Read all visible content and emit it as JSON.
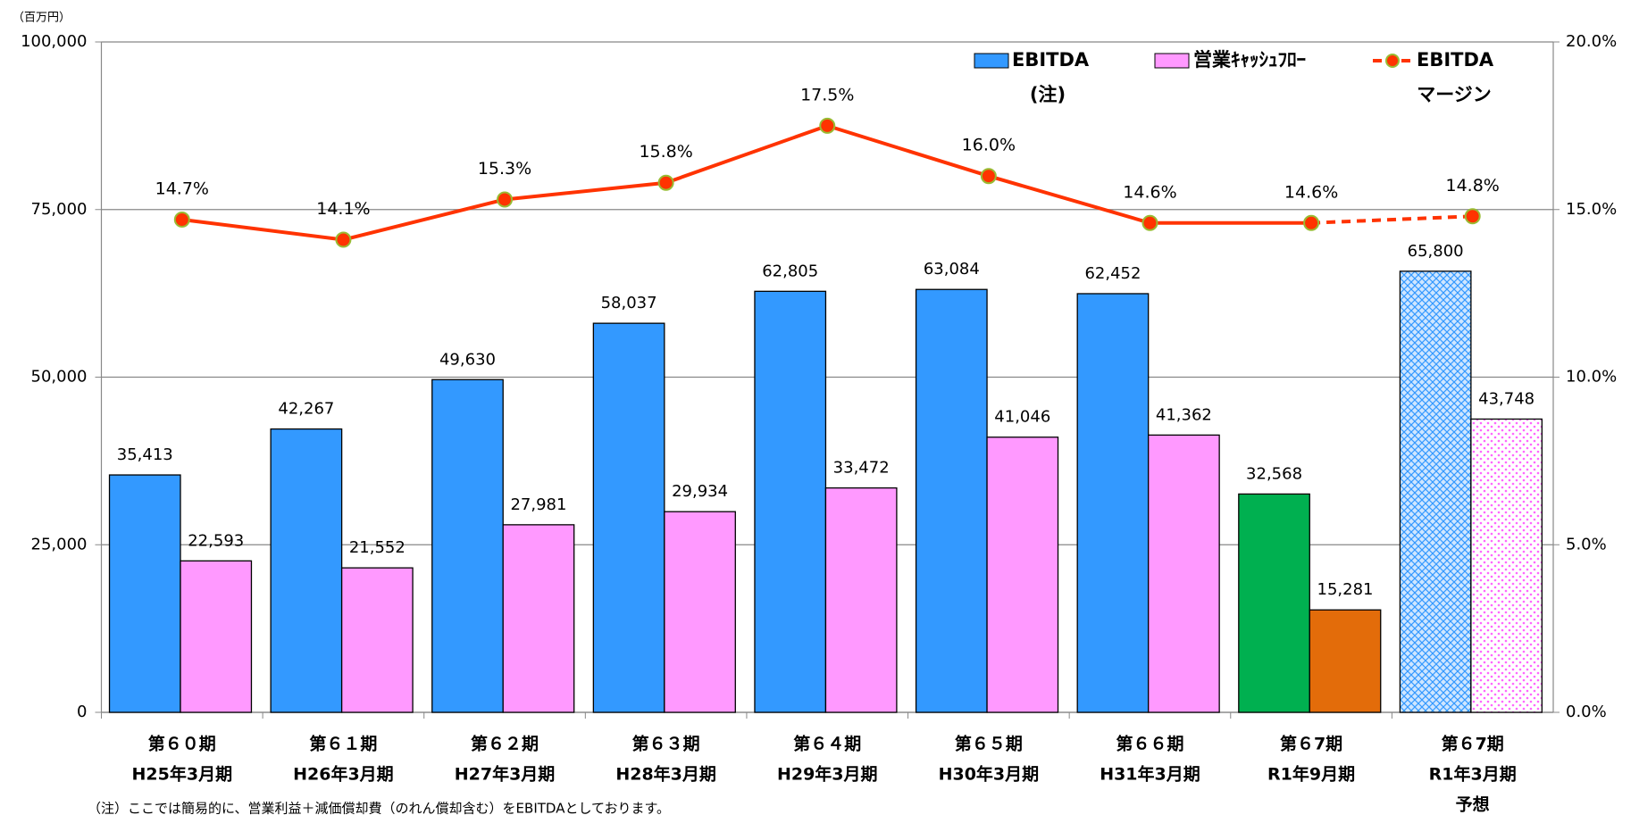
{
  "chart_data": {
    "type": "bar_line",
    "unit_label": "（百万円）",
    "note": "（注）ここでは簡易的に、営業利益＋減価償却費（のれん償却含む）をEBITDAとしております。",
    "categories": [
      [
        "第６０期",
        "H25年3月期"
      ],
      [
        "第６１期",
        "H26年3月期"
      ],
      [
        "第６２期",
        "H27年3月期"
      ],
      [
        "第６３期",
        "H28年3月期"
      ],
      [
        "第６４期",
        "H29年3月期"
      ],
      [
        "第６５期",
        "H30年3月期"
      ],
      [
        "第６６期",
        "H31年3月期"
      ],
      [
        "第６7期",
        "R1年9月期"
      ],
      [
        "第６7期",
        "R1年3月期",
        "予想"
      ]
    ],
    "ylim": [
      0,
      100000
    ],
    "yticks": [
      0,
      {
        "value": 25000,
        "label": "25,000"
      },
      {
        "value": 50000,
        "label": "50,000"
      },
      {
        "value": 75000,
        "label": "75,000"
      },
      {
        "value": 100000,
        "label": "100,000"
      }
    ],
    "y2lim": [
      0,
      20
    ],
    "y2ticks": [
      {
        "value": 0,
        "label": "0.0%"
      },
      {
        "value": 5,
        "label": "5.0%"
      },
      {
        "value": 10,
        "label": "10.0%"
      },
      {
        "value": 15,
        "label": "15.0%"
      },
      {
        "value": 20,
        "label": "20.0%"
      }
    ],
    "grid": true,
    "series": [
      {
        "name": [
          "EBITDA",
          "(注)"
        ],
        "type": "bar",
        "color": "#3399ff",
        "colors": [
          "#3399ff",
          "#3399ff",
          "#3399ff",
          "#3399ff",
          "#3399ff",
          "#3399ff",
          "#3399ff",
          "#00b050",
          "#99ccff"
        ],
        "hatched": [
          false,
          false,
          false,
          false,
          false,
          false,
          false,
          false,
          true
        ],
        "values": [
          35413,
          42267,
          49630,
          58037,
          62805,
          63084,
          62452,
          32568,
          65800
        ],
        "value_labels": [
          "35,413",
          "42,267",
          "49,630",
          "58,037",
          "62,805",
          "63,084",
          "62,452",
          "32,568",
          "65,800"
        ]
      },
      {
        "name": [
          "営業ｷｬｯｼｭﾌﾛｰ"
        ],
        "type": "bar",
        "color": "#ff99ff",
        "colors": [
          "#ff99ff",
          "#ff99ff",
          "#ff99ff",
          "#ff99ff",
          "#ff99ff",
          "#ff99ff",
          "#ff99ff",
          "#e36c0a",
          "#ffccff"
        ],
        "hatched": [
          false,
          false,
          false,
          false,
          false,
          false,
          false,
          false,
          true
        ],
        "values": [
          22593,
          21552,
          27981,
          29934,
          33472,
          41046,
          41362,
          15281,
          43748
        ],
        "value_labels": [
          "22,593",
          "21,552",
          "27,981",
          "29,934",
          "33,472",
          "41,046",
          "41,362",
          "15,281",
          "43,748"
        ]
      },
      {
        "name": [
          "EBITDA",
          "マージン"
        ],
        "type": "line",
        "axis": "y2",
        "color": "#ff3300",
        "dashed": [
          false,
          false,
          false,
          false,
          false,
          false,
          false,
          false,
          true
        ],
        "values": [
          14.7,
          14.1,
          15.3,
          15.8,
          17.5,
          16.0,
          14.6,
          14.6,
          14.8
        ],
        "value_labels": [
          "14.7%",
          "14.1%",
          "15.3%",
          "15.8%",
          "17.5%",
          "16.0%",
          "14.6%",
          "14.6%",
          "14.8%"
        ]
      }
    ]
  }
}
